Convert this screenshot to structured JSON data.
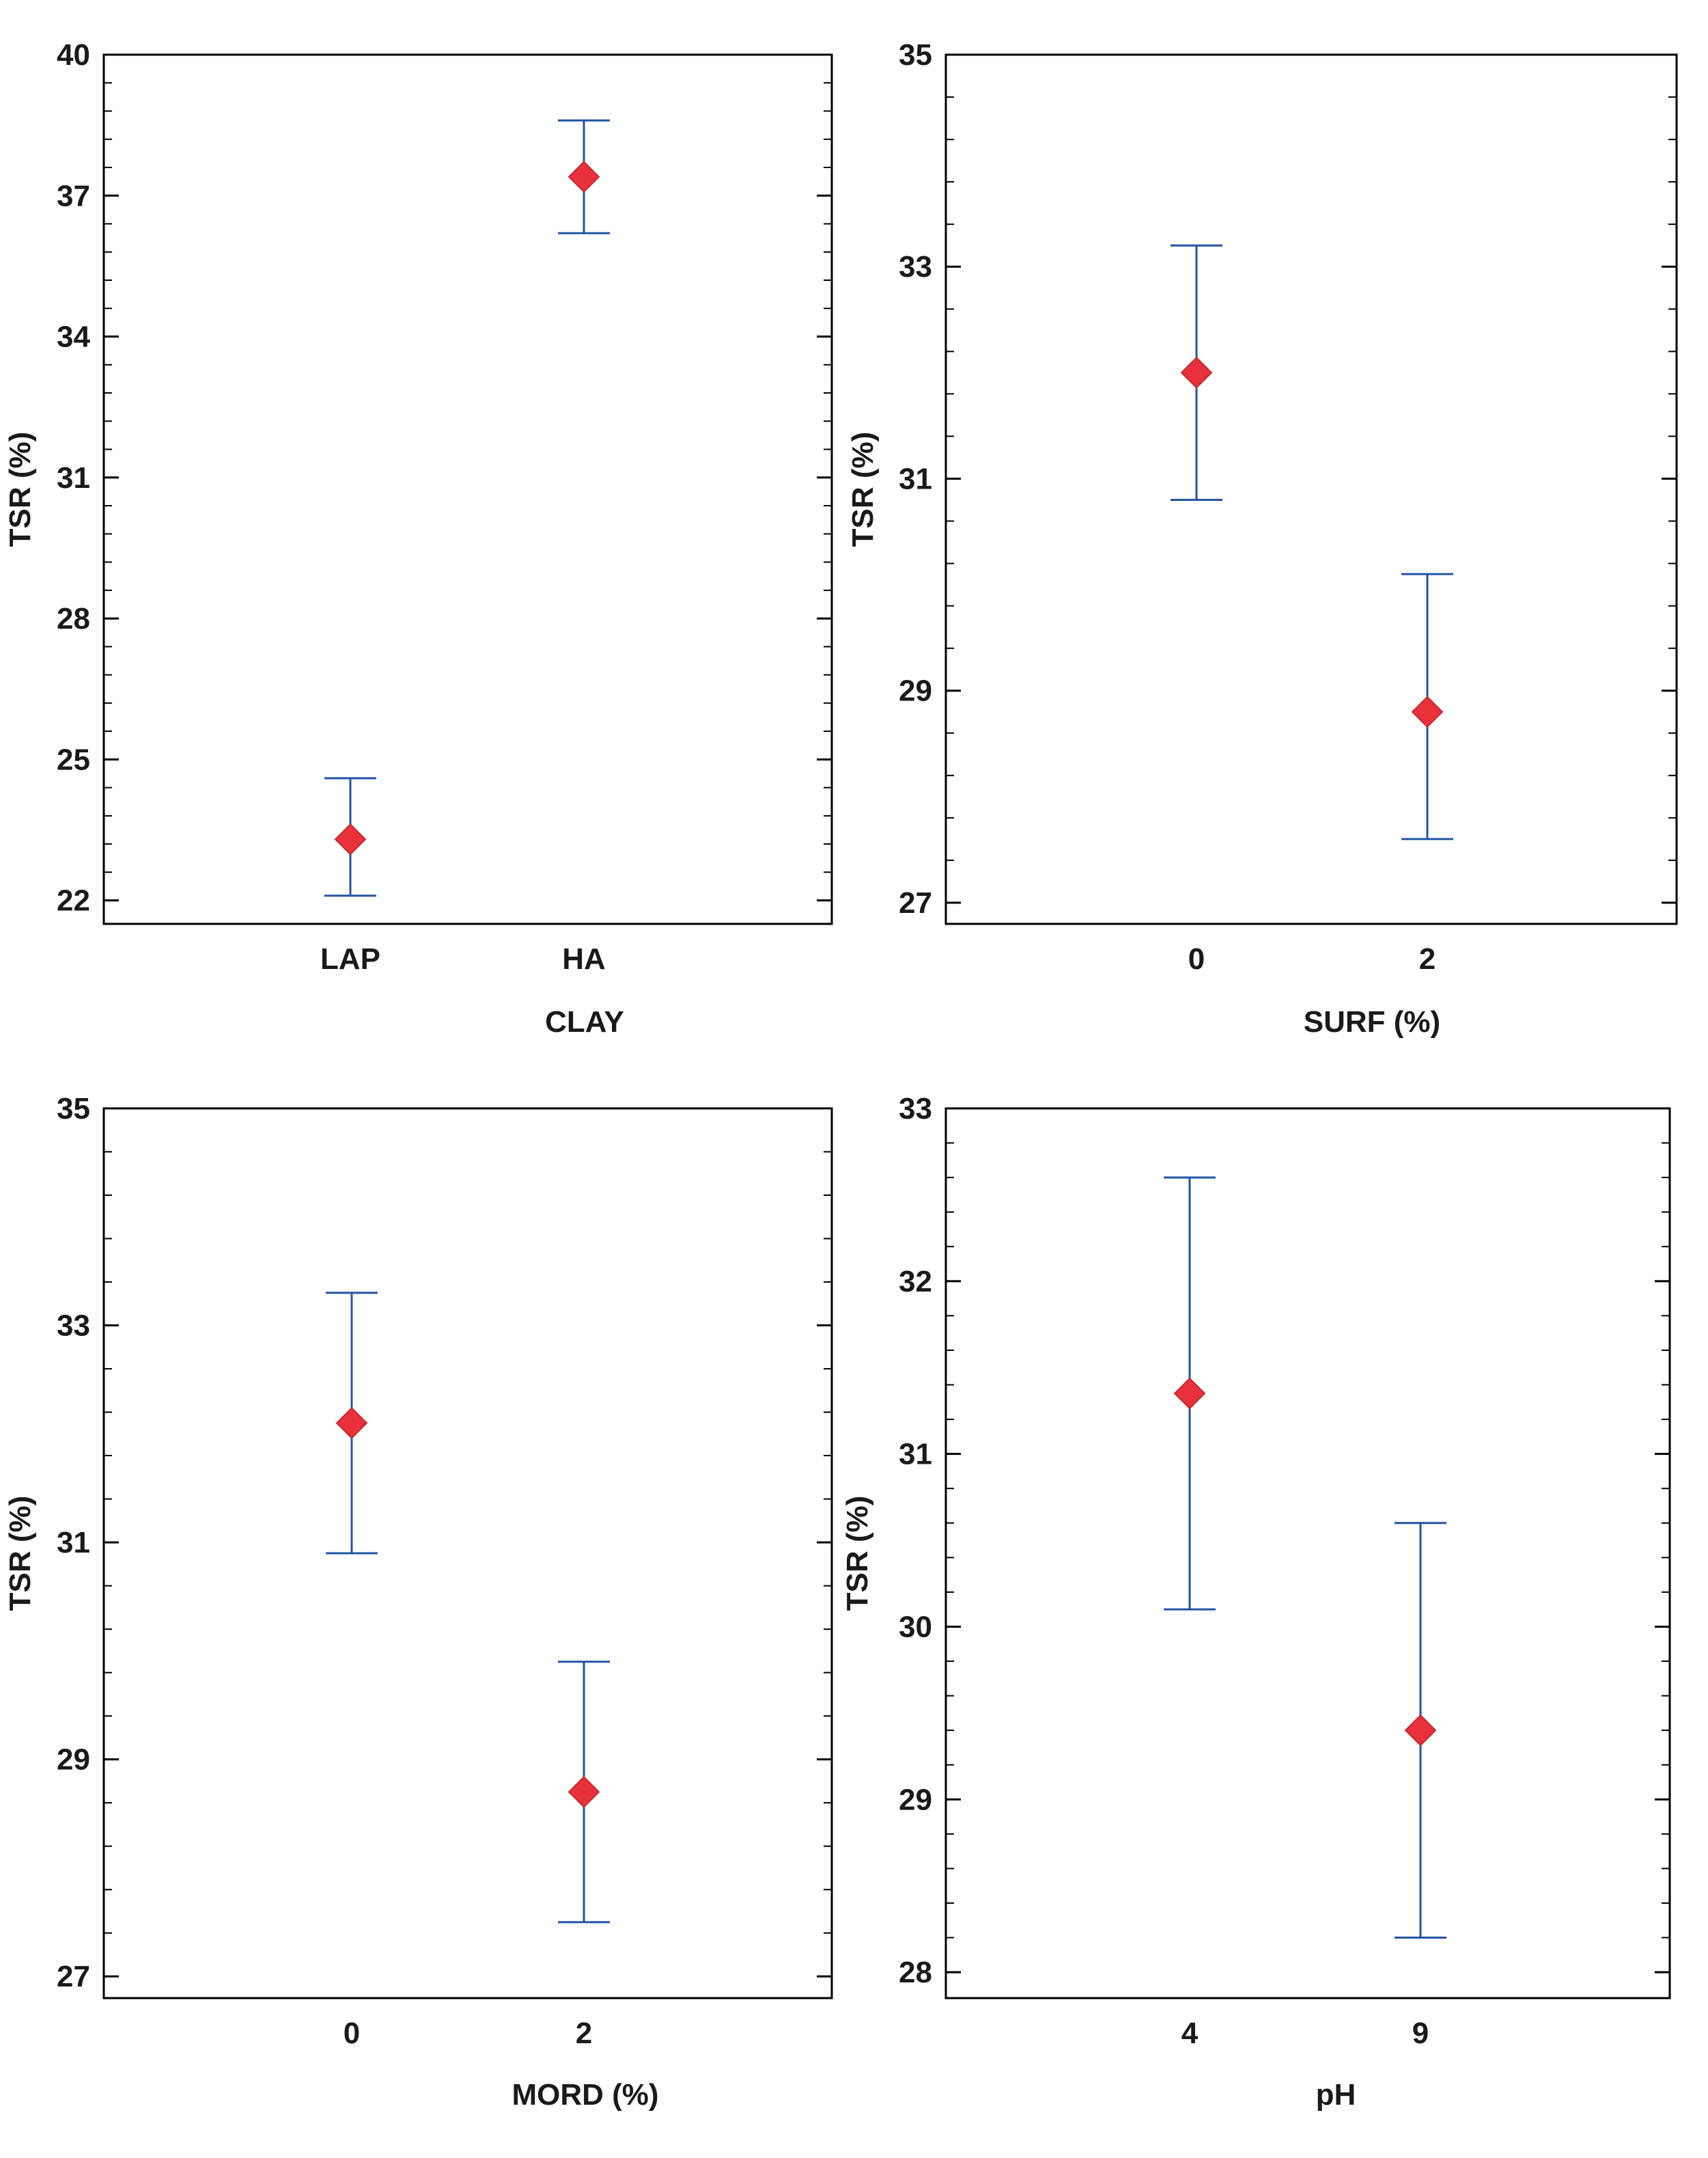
{
  "colors": {
    "frame": "#000000",
    "error_bar": "#2255a4",
    "marker_fill": "#e8313a",
    "marker_edge": "#c42a2e",
    "text": "#1a1a1a"
  },
  "chart_data": [
    {
      "type": "scatter",
      "title": "",
      "xlabel": "CLAY",
      "ylabel": "TSR (%)",
      "categories": [
        "LAP",
        "HA"
      ],
      "ylim": [
        21.5,
        40
      ],
      "yticks": [
        22,
        25,
        28,
        31,
        34,
        37,
        40
      ],
      "means": [
        23.3,
        37.4
      ],
      "lower": [
        22.1,
        36.2
      ],
      "upper": [
        24.6,
        38.6
      ],
      "grid": false,
      "legend": "none"
    },
    {
      "type": "scatter",
      "title": "",
      "xlabel": "SURF (%)",
      "ylabel": "TSR (%)",
      "categories": [
        "0",
        "2"
      ],
      "ylim": [
        26.8,
        35
      ],
      "yticks": [
        27,
        29,
        31,
        33,
        35
      ],
      "means": [
        32.0,
        28.8
      ],
      "lower": [
        30.8,
        27.6
      ],
      "upper": [
        33.2,
        30.1
      ],
      "grid": false,
      "legend": "none"
    },
    {
      "type": "scatter",
      "title": "",
      "xlabel": "MORD (%)",
      "ylabel": "TSR (%)",
      "categories": [
        "0",
        "2"
      ],
      "ylim": [
        26.8,
        35
      ],
      "yticks": [
        27,
        29,
        31,
        33,
        35
      ],
      "means": [
        32.1,
        28.7
      ],
      "lower": [
        30.9,
        27.5
      ],
      "upper": [
        33.3,
        29.9
      ],
      "grid": false,
      "legend": "none"
    },
    {
      "type": "scatter",
      "title": "",
      "xlabel": "pH",
      "ylabel": "TSR (%)",
      "categories": [
        "4",
        "9"
      ],
      "ylim": [
        27.85,
        33
      ],
      "yticks": [
        28,
        29,
        30,
        31,
        32,
        33
      ],
      "means": [
        31.35,
        29.4
      ],
      "lower": [
        30.1,
        28.2
      ],
      "upper": [
        32.6,
        30.6
      ],
      "grid": false,
      "legend": "none"
    }
  ]
}
